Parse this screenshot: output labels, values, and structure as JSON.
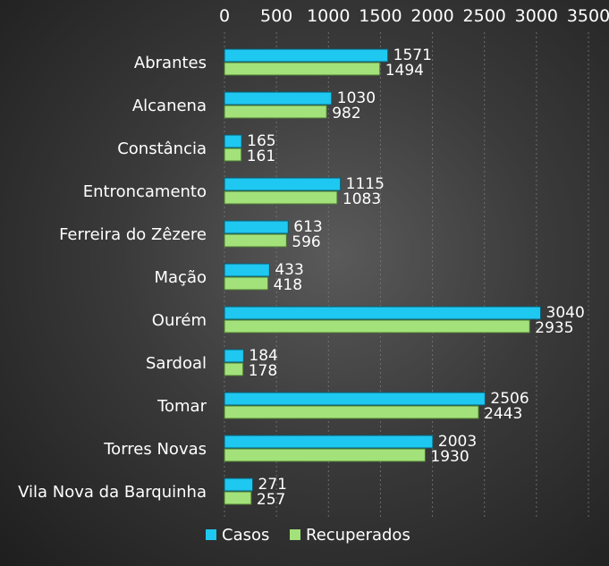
{
  "chart_data": {
    "type": "bar",
    "orientation": "horizontal",
    "categories": [
      "Abrantes",
      "Alcanena",
      "Constância",
      "Entroncamento",
      "Ferreira do Zêzere",
      "Mação",
      "Ourém",
      "Sardoal",
      "Tomar",
      "Torres Novas",
      "Vila Nova da Barquinha"
    ],
    "series": [
      {
        "name": "Casos",
        "color": "#1ec8f0",
        "values": [
          1571,
          1030,
          165,
          1115,
          613,
          433,
          3040,
          184,
          2506,
          2003,
          271
        ]
      },
      {
        "name": "Recuperados",
        "color": "#a3e27a",
        "values": [
          1494,
          982,
          161,
          1083,
          596,
          418,
          2935,
          178,
          2443,
          1930,
          257
        ]
      }
    ],
    "xlim": [
      0,
      3500
    ],
    "x_ticks": [
      0,
      500,
      1000,
      1500,
      2000,
      2500,
      3000,
      3500
    ],
    "x_axis_position": "top",
    "grid": "vertical",
    "legend": "bottom"
  }
}
